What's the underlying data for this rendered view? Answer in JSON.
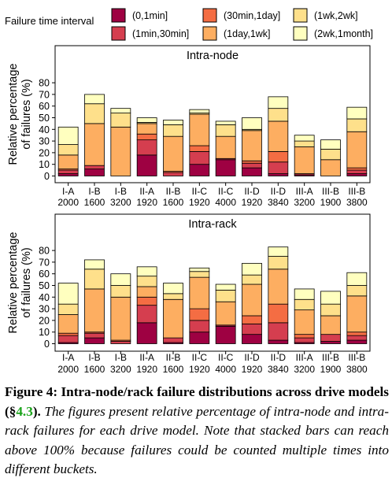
{
  "legend": {
    "title": "Failure time interval",
    "entries": [
      {
        "label": "(0,1min]",
        "color": "#9e0142"
      },
      {
        "label": "(1min,30min]",
        "color": "#d53e4f"
      },
      {
        "label": "(30min,1day]",
        "color": "#f46d43"
      },
      {
        "label": "(1day,1wk]",
        "color": "#fdae61"
      },
      {
        "label": "(1wk,2wk]",
        "color": "#fee08b"
      },
      {
        "label": "(2wk,1month]",
        "color": "#ffffbf"
      }
    ]
  },
  "chart_data": [
    {
      "type": "bar",
      "stacked": true,
      "title": "Intra-node",
      "ylabel": "Relative percentage of failures (%)",
      "ylim": [
        0,
        85
      ],
      "yticks": [
        0,
        10,
        20,
        30,
        40,
        50,
        60,
        70,
        80
      ],
      "grid": false,
      "categories": [
        "I-A 2000",
        "I-B 1600",
        "I-B 3200",
        "II-A 1920",
        "II-B 1600",
        "II-C 1920",
        "II-C 4000",
        "II-D 1920",
        "II-D 3840",
        "III-A 3200",
        "III-B 1900",
        "III-B 3800"
      ],
      "tick_labels": [
        {
          "model": "I-A",
          "capacity": "2000"
        },
        {
          "model": "I-B",
          "capacity": "1600"
        },
        {
          "model": "I-B",
          "capacity": "3200"
        },
        {
          "model": "II-A",
          "capacity": "1920"
        },
        {
          "model": "II-B",
          "capacity": "1600"
        },
        {
          "model": "II-C",
          "capacity": "1920"
        },
        {
          "model": "II-C",
          "capacity": "4000"
        },
        {
          "model": "II-D",
          "capacity": "1920"
        },
        {
          "model": "II-D",
          "capacity": "3840"
        },
        {
          "model": "III-A",
          "capacity": "3200"
        },
        {
          "model": "III-B",
          "capacity": "1900"
        },
        {
          "model": "III-B",
          "capacity": "3800"
        }
      ],
      "series": [
        {
          "name": "(0,1min]",
          "values": [
            2,
            6,
            0,
            18,
            0,
            10,
            14,
            7,
            2,
            1,
            0,
            2
          ]
        },
        {
          "name": "(1min,30min]",
          "values": [
            3,
            3,
            0,
            13,
            3,
            11,
            1,
            4,
            10,
            1,
            0,
            3
          ]
        },
        {
          "name": "(30min,1day]",
          "values": [
            1,
            0,
            0,
            5,
            1,
            5,
            0,
            2,
            9,
            0,
            0,
            2
          ]
        },
        {
          "name": "(1day,1wk]",
          "values": [
            12,
            36,
            42,
            9,
            30,
            27,
            19,
            26,
            26,
            23,
            14,
            31
          ]
        },
        {
          "name": "(1wk,2wk]",
          "values": [
            9,
            17,
            12,
            1,
            10,
            1,
            10,
            1,
            11,
            5,
            9,
            11
          ]
        },
        {
          "name": "(2wk,1month]",
          "values": [
            15,
            8,
            4,
            4,
            4,
            3,
            3,
            10,
            10,
            5,
            8,
            10
          ]
        }
      ]
    },
    {
      "type": "bar",
      "stacked": true,
      "title": "Intra-rack",
      "ylabel": "Relative percentage of failures (%)",
      "ylim": [
        0,
        85
      ],
      "yticks": [
        0,
        10,
        20,
        30,
        40,
        50,
        60,
        70,
        80
      ],
      "grid": false,
      "categories": [
        "I-A 2000",
        "I-B 1600",
        "I-B 3200",
        "II-A 1920",
        "II-B 1600",
        "II-C 1920",
        "II-C 4000",
        "II-D 1920",
        "II-D 3840",
        "III-A 3200",
        "III-B 1900",
        "III-B 3800"
      ],
      "tick_labels": [
        {
          "model": "I-A",
          "capacity": "2000"
        },
        {
          "model": "I-B",
          "capacity": "1600"
        },
        {
          "model": "I-B",
          "capacity": "3200"
        },
        {
          "model": "II-A",
          "capacity": "1920"
        },
        {
          "model": "II-B",
          "capacity": "1600"
        },
        {
          "model": "II-C",
          "capacity": "1920"
        },
        {
          "model": "II-C",
          "capacity": "4000"
        },
        {
          "model": "II-D",
          "capacity": "1920"
        },
        {
          "model": "II-D",
          "capacity": "3840"
        },
        {
          "model": "III-A",
          "capacity": "3200"
        },
        {
          "model": "III-B",
          "capacity": "1900"
        },
        {
          "model": "III-B",
          "capacity": "3800"
        }
      ],
      "series": [
        {
          "name": "(0,1min]",
          "values": [
            1,
            5,
            0,
            18,
            1,
            10,
            15,
            8,
            3,
            1,
            2,
            3
          ]
        },
        {
          "name": "(1min,30min]",
          "values": [
            6,
            4,
            2,
            15,
            4,
            10,
            1,
            9,
            15,
            4,
            6,
            4
          ]
        },
        {
          "name": "(30min,1day]",
          "values": [
            2,
            1,
            1,
            7,
            0,
            10,
            0,
            7,
            16,
            3,
            0,
            3
          ]
        },
        {
          "name": "(1day,1wk]",
          "values": [
            16,
            37,
            37,
            9,
            33,
            27,
            20,
            27,
            30,
            21,
            16,
            31
          ]
        },
        {
          "name": "(1wk,2wk]",
          "values": [
            9,
            17,
            10,
            9,
            5,
            5,
            10,
            8,
            11,
            9,
            10,
            9
          ]
        },
        {
          "name": "(2wk,1month]",
          "values": [
            18,
            8,
            10,
            8,
            9,
            3,
            5,
            10,
            8,
            9,
            11,
            11
          ]
        }
      ]
    }
  ],
  "caption": {
    "label": "Figure 4:",
    "heading": "Intra-node/rack failure distributions across drive models (§",
    "section": "4.3",
    "heading_end": ").",
    "body": "The figures present relative percentage of intra-node and intra-rack failures for each drive model. Note that stacked bars can reach above 100% because failures could be counted multiple times into different buckets."
  }
}
